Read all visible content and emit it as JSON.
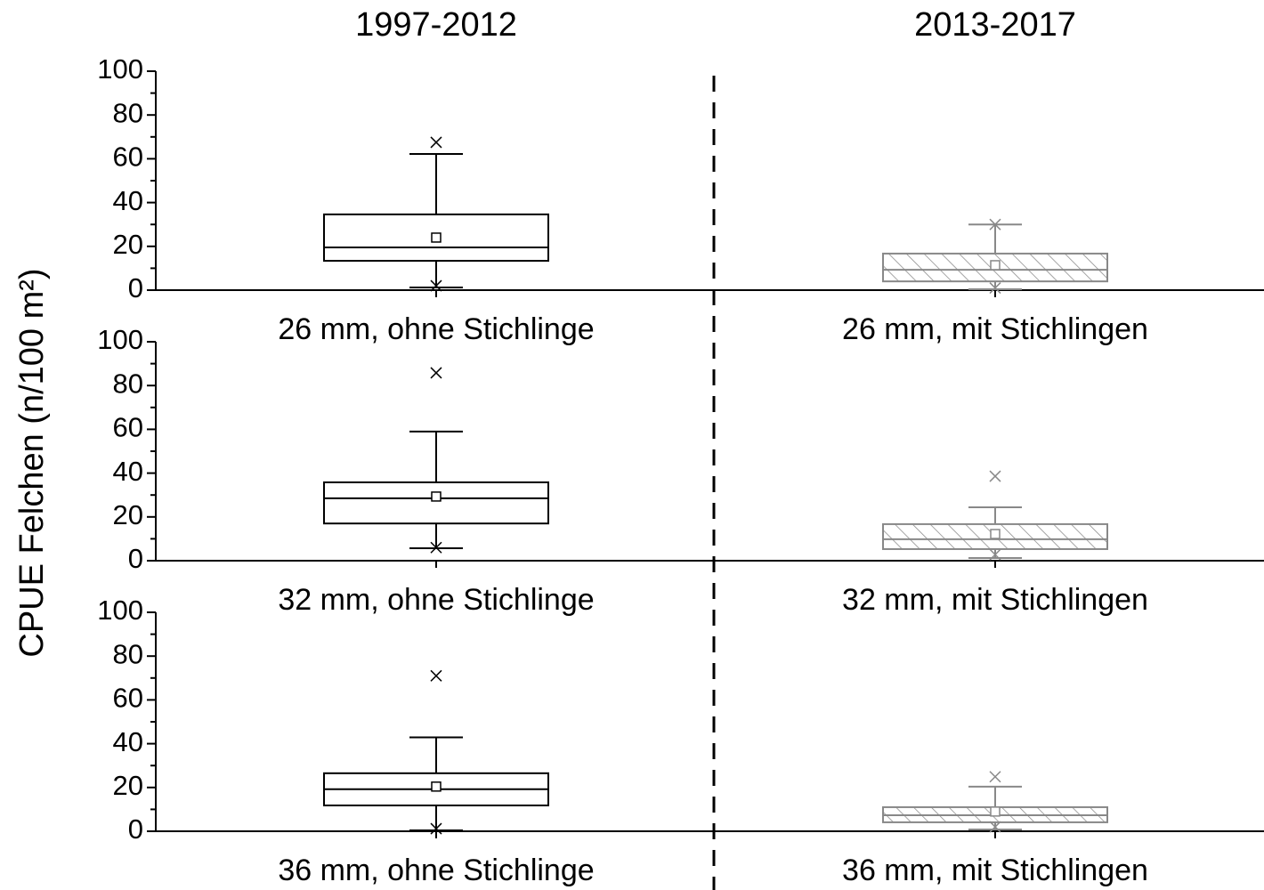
{
  "column_titles": [
    "1997-2012",
    "2013-2017"
  ],
  "ylabel": "CPUE Felchen (n/100 m²)",
  "chart_data": [
    {
      "type": "box",
      "categories": [
        "26 mm, ohne Stichlinge",
        "26 mm, mit Stichlingen"
      ],
      "ylim": [
        0,
        100
      ],
      "yticks": [
        0,
        20,
        40,
        60,
        80,
        100
      ],
      "yminor_ticks": [
        10,
        30,
        50,
        70,
        90
      ],
      "boxes": [
        {
          "color": "#000000",
          "hatch": false,
          "min": 2,
          "whisker_low": 1.2,
          "q1": 13.4,
          "median": 19.5,
          "q3": 34.6,
          "whisker_high": 62.2,
          "max": 67.5,
          "mean": 24
        },
        {
          "color": "#888888",
          "hatch": true,
          "min": 1,
          "whisker_low": 0.4,
          "q1": 4,
          "median": 9.3,
          "q3": 16.7,
          "whisker_high": 30,
          "max": 30,
          "mean": 11.4
        }
      ]
    },
    {
      "type": "box",
      "categories": [
        "32 mm, ohne Stichlinge",
        "32 mm, mit Stichlingen"
      ],
      "ylim": [
        0,
        100
      ],
      "yticks": [
        0,
        20,
        40,
        60,
        80,
        100
      ],
      "yminor_ticks": [
        10,
        30,
        50,
        70,
        90
      ],
      "boxes": [
        {
          "color": "#000000",
          "hatch": false,
          "min": 6,
          "whisker_low": 5.7,
          "q1": 17,
          "median": 28.5,
          "q3": 35.8,
          "whisker_high": 59,
          "max": 85.8,
          "mean": 29.3
        },
        {
          "color": "#888888",
          "hatch": true,
          "min": 2.8,
          "whisker_low": 1.2,
          "q1": 5.3,
          "median": 9.8,
          "q3": 16.7,
          "whisker_high": 24.4,
          "max": 38.6,
          "mean": 12.2
        }
      ]
    },
    {
      "type": "box",
      "categories": [
        "36 mm, ohne Stichlinge",
        "36 mm, mit Stichlingen"
      ],
      "ylim": [
        0,
        100
      ],
      "yticks": [
        0,
        20,
        40,
        60,
        80,
        100
      ],
      "yminor_ticks": [
        10,
        30,
        50,
        70,
        90
      ],
      "boxes": [
        {
          "color": "#000000",
          "hatch": false,
          "min": 1.2,
          "whisker_low": 0.4,
          "q1": 11.8,
          "median": 19.2,
          "q3": 26.5,
          "whisker_high": 42.9,
          "max": 71,
          "mean": 20.4
        },
        {
          "color": "#888888",
          "hatch": true,
          "min": 2,
          "whisker_low": 0.8,
          "q1": 4.1,
          "median": 7.3,
          "q3": 11,
          "whisker_high": 20.4,
          "max": 24.9,
          "mean": 9
        }
      ]
    }
  ]
}
